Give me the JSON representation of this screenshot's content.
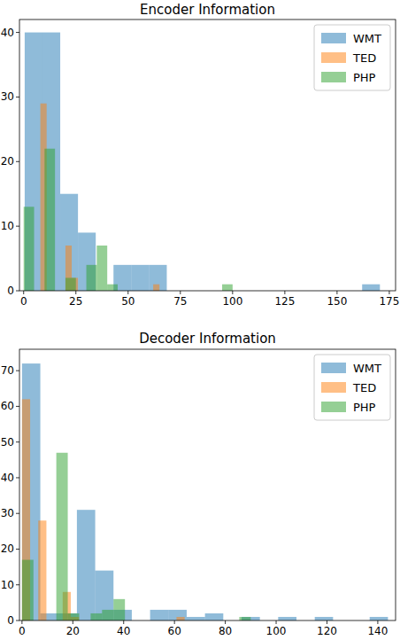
{
  "chart_data": [
    {
      "type": "histogram",
      "title": "Encoder Information",
      "xlim": [
        -2,
        178
      ],
      "ylim": [
        0,
        42
      ],
      "xticks": [
        0,
        25,
        50,
        75,
        100,
        125,
        150,
        175
      ],
      "yticks": [
        0,
        10,
        20,
        30,
        40
      ],
      "legend": "upper right",
      "series": [
        {
          "name": "WMT",
          "color": "#1f77b4",
          "bins": [
            0.5,
            9,
            17.5,
            26,
            34.5,
            43,
            51.5,
            60,
            68.5,
            77,
            85.5,
            94,
            102.5,
            111,
            119.5,
            128,
            136.5,
            145,
            153.5,
            162,
            170.5
          ],
          "values": [
            40,
            40,
            15,
            9,
            0,
            4,
            4,
            4,
            0,
            0,
            0,
            0,
            0,
            0,
            0,
            0,
            0,
            0,
            0,
            1
          ]
        },
        {
          "name": "TED",
          "color": "#ff7f0e",
          "bins": [
            5,
            8,
            11,
            14,
            17,
            20,
            23,
            26,
            29,
            32,
            35,
            38,
            41,
            44,
            47,
            50,
            53,
            56,
            59,
            62,
            65
          ],
          "values": [
            0,
            29,
            0,
            0,
            0,
            7,
            2,
            0,
            0,
            0,
            0,
            0,
            0,
            0,
            0,
            0,
            0,
            0,
            0,
            1
          ]
        },
        {
          "name": "PHP",
          "color": "#2ca02c",
          "bins": [
            0,
            5,
            10,
            15,
            20,
            25,
            30,
            35,
            40,
            45,
            50,
            55,
            60,
            65,
            70,
            75,
            80,
            85,
            90,
            95,
            100
          ],
          "values": [
            13,
            0,
            22,
            0,
            2,
            0,
            4,
            7,
            1,
            0,
            0,
            0,
            0,
            0,
            0,
            0,
            0,
            0,
            0,
            1
          ]
        }
      ]
    },
    {
      "type": "histogram",
      "title": "Decoder Information",
      "xlim": [
        -1,
        147
      ],
      "ylim": [
        0,
        76
      ],
      "xticks": [
        0,
        20,
        40,
        60,
        80,
        100,
        120,
        140
      ],
      "yticks": [
        0,
        10,
        20,
        30,
        40,
        50,
        60,
        70
      ],
      "legend": "upper right",
      "series": [
        {
          "name": "WMT",
          "color": "#1f77b4",
          "bins": [
            0,
            7.2,
            14.4,
            21.6,
            28.8,
            36,
            43.2,
            50.4,
            57.6,
            64.8,
            72,
            79.2,
            86.4,
            93.6,
            100.8,
            108,
            115.2,
            122.4,
            129.6,
            136.8,
            144
          ],
          "values": [
            72,
            2,
            2,
            31,
            14,
            3,
            0,
            3,
            3,
            1,
            2,
            0,
            1,
            0,
            1,
            0,
            1,
            0,
            0,
            1
          ]
        },
        {
          "name": "TED",
          "color": "#ff7f0e",
          "bins": [
            0,
            3.2,
            6.4,
            9.6,
            12.8,
            16,
            19.2,
            22.4,
            25.6,
            28.8,
            32,
            35.2,
            38.4,
            41.6,
            44.8,
            48,
            51.2,
            54.4,
            57.6,
            60.8,
            64
          ],
          "values": [
            62,
            0,
            28,
            0,
            0,
            8,
            1,
            0,
            0,
            0,
            0,
            0,
            0,
            0,
            0,
            0,
            0,
            0,
            0,
            1
          ]
        },
        {
          "name": "PHP",
          "color": "#2ca02c",
          "bins": [
            0,
            4.5,
            9,
            13.5,
            18,
            22.5,
            27,
            31.5,
            36,
            40.5,
            45,
            49.5,
            54,
            58.5,
            63,
            67.5,
            72,
            76.5,
            81,
            85.5,
            90
          ],
          "values": [
            17,
            0,
            0,
            47,
            2,
            0,
            2,
            3,
            6,
            0,
            0,
            0,
            0,
            0,
            0,
            0,
            0,
            0,
            0,
            1
          ]
        }
      ]
    }
  ]
}
